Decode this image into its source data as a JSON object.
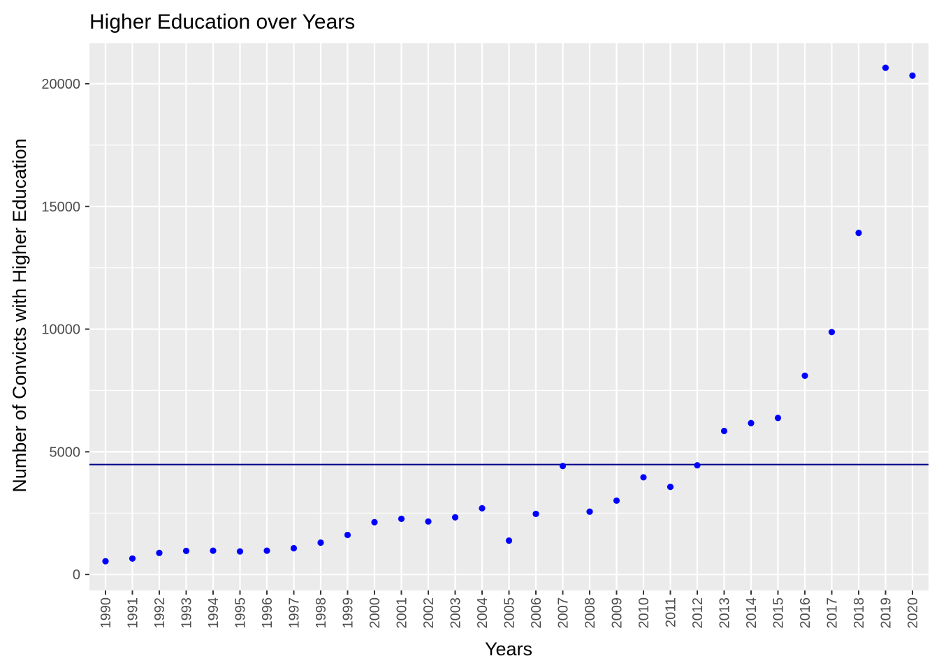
{
  "chart_data": {
    "type": "scatter",
    "title": "Higher Education over Years",
    "xlabel": "Years",
    "ylabel": "Number of Convicts with Higher Education",
    "categories": [
      "1990",
      "1991",
      "1992",
      "1993",
      "1994",
      "1995",
      "1996",
      "1997",
      "1998",
      "1999",
      "2000",
      "2001",
      "2002",
      "2003",
      "2004",
      "2005",
      "2006",
      "2007",
      "2008",
      "2009",
      "2010",
      "2011",
      "2012",
      "2013",
      "2014",
      "2015",
      "2016",
      "2017",
      "2018",
      "2019",
      "2020"
    ],
    "values": [
      540,
      650,
      880,
      960,
      970,
      940,
      970,
      1070,
      1300,
      1610,
      2130,
      2270,
      2160,
      2330,
      2700,
      1380,
      2470,
      4420,
      2560,
      3010,
      3960,
      3570,
      4450,
      5850,
      6170,
      6380,
      8100,
      9880,
      13920,
      20650,
      20330
    ],
    "reference_line": 4480,
    "yticks": [
      0,
      5000,
      10000,
      15000,
      20000
    ],
    "ylim": [
      -650,
      21650
    ],
    "grid": true,
    "point_color": "#0000FF",
    "line_color": "#00008B",
    "panel_color": "#EBEBEB"
  }
}
